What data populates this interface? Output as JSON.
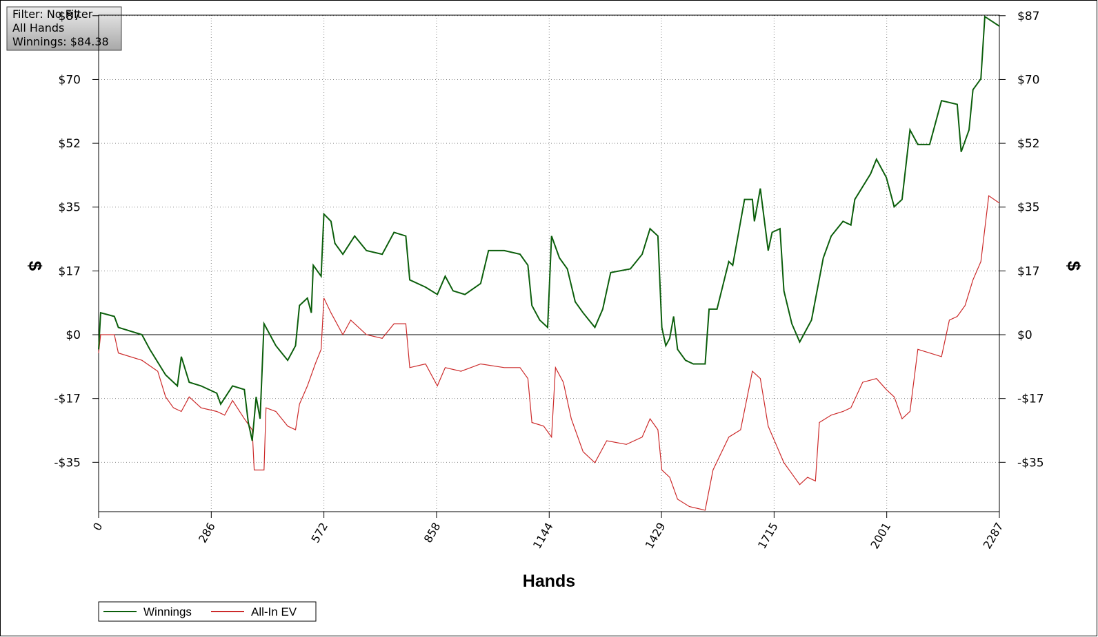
{
  "chart_data": {
    "type": "line",
    "info": [
      "Filter: No Filter",
      "All Hands",
      "Winnings: $84.38"
    ],
    "xlabel": "Hands",
    "ylabel": "$",
    "y2label": "$",
    "xlim": [
      0,
      2287
    ],
    "xticks": [
      0,
      286,
      572,
      858,
      1144,
      1429,
      1715,
      2001,
      2287
    ],
    "ylim": [
      -48.4,
      87.4
    ],
    "yticks": [
      {
        "value": -34.9,
        "label": "-$35"
      },
      {
        "value": -17.45,
        "label": "-$17"
      },
      {
        "value": 0,
        "label": "$0"
      },
      {
        "value": 17.45,
        "label": "$17"
      },
      {
        "value": 34.9,
        "label": "$35"
      },
      {
        "value": 52.35,
        "label": "$52"
      },
      {
        "value": 69.8,
        "label": "$70"
      },
      {
        "value": 87.25,
        "label": "$87"
      }
    ],
    "grid": true,
    "legend": "bottom-left",
    "series": [
      {
        "name": "Winnings",
        "color": "#0b5e0b",
        "x": [
          0,
          5,
          40,
          50,
          110,
          130,
          170,
          200,
          210,
          230,
          260,
          300,
          310,
          340,
          370,
          380,
          390,
          400,
          410,
          420,
          450,
          480,
          500,
          510,
          530,
          540,
          545,
          565,
          572,
          590,
          600,
          620,
          650,
          680,
          720,
          750,
          780,
          790,
          830,
          860,
          880,
          900,
          930,
          970,
          990,
          1030,
          1070,
          1090,
          1100,
          1120,
          1140,
          1150,
          1170,
          1190,
          1210,
          1230,
          1260,
          1280,
          1300,
          1350,
          1380,
          1400,
          1420,
          1430,
          1440,
          1450,
          1460,
          1470,
          1490,
          1510,
          1540,
          1550,
          1570,
          1600,
          1610,
          1640,
          1660,
          1665,
          1680,
          1700,
          1710,
          1730,
          1740,
          1760,
          1780,
          1800,
          1810,
          1840,
          1860,
          1890,
          1910,
          1920,
          1960,
          1975,
          2000,
          2020,
          2040,
          2060,
          2080,
          2110,
          2140,
          2180,
          2190,
          2210,
          2220,
          2240,
          2250,
          2287
        ],
        "values": [
          -4,
          6,
          5,
          2,
          0,
          -4,
          -11,
          -14,
          -6,
          -13,
          -14,
          -16,
          -19,
          -14,
          -15,
          -24,
          -29,
          -17,
          -23,
          3,
          -3,
          -7,
          -3,
          8,
          10,
          6,
          19,
          16,
          33,
          31,
          25,
          22,
          27,
          23,
          22,
          28,
          27,
          15,
          13,
          11,
          16,
          12,
          11,
          14,
          23,
          23,
          22,
          19,
          8,
          4,
          2,
          27,
          21,
          18,
          9,
          6,
          2,
          7,
          17,
          18,
          22,
          29,
          27,
          2,
          -3,
          -1,
          5,
          -4,
          -7,
          -8,
          -8,
          7,
          7,
          20,
          19,
          37,
          37,
          31,
          40,
          23,
          28,
          29,
          12,
          3,
          -2,
          2,
          4,
          21,
          27,
          31,
          30,
          37,
          44,
          48,
          43,
          35,
          37,
          56,
          52,
          52,
          64,
          63,
          50,
          56,
          67,
          70,
          87,
          84.38
        ]
      },
      {
        "name": "All-In EV",
        "color": "#cc2a2a",
        "x": [
          0,
          5,
          40,
          50,
          110,
          150,
          170,
          190,
          210,
          230,
          260,
          300,
          320,
          340,
          370,
          390,
          395,
          420,
          425,
          450,
          480,
          500,
          510,
          530,
          550,
          565,
          572,
          590,
          620,
          640,
          680,
          720,
          750,
          780,
          790,
          830,
          860,
          880,
          920,
          970,
          1030,
          1070,
          1090,
          1100,
          1130,
          1150,
          1160,
          1180,
          1200,
          1230,
          1260,
          1290,
          1340,
          1380,
          1400,
          1420,
          1430,
          1450,
          1470,
          1500,
          1540,
          1560,
          1600,
          1630,
          1660,
          1680,
          1700,
          1720,
          1740,
          1760,
          1780,
          1800,
          1820,
          1830,
          1860,
          1890,
          1910,
          1940,
          1975,
          2000,
          2020,
          2040,
          2060,
          2080,
          2110,
          2140,
          2160,
          2180,
          2200,
          2220,
          2240,
          2260,
          2287
        ],
        "values": [
          -5,
          0,
          0,
          -5,
          -7,
          -10,
          -17,
          -20,
          -21,
          -17,
          -20,
          -21,
          -22,
          -18,
          -23,
          -26,
          -37,
          -37,
          -20,
          -21,
          -25,
          -26,
          -19,
          -14,
          -8,
          -4,
          10,
          6,
          0,
          4,
          0,
          -1,
          3,
          3,
          -9,
          -8,
          -14,
          -9,
          -10,
          -8,
          -9,
          -9,
          -12,
          -24,
          -25,
          -28,
          -9,
          -13,
          -23,
          -32,
          -35,
          -29,
          -30,
          -28,
          -23,
          -26,
          -37,
          -39,
          -45,
          -47,
          -48,
          -37,
          -28,
          -26,
          -10,
          -12,
          -25,
          -30,
          -35,
          -38,
          -41,
          -39,
          -40,
          -24,
          -22,
          -21,
          -20,
          -13,
          -12,
          -15,
          -17,
          -23,
          -21,
          -4,
          -5,
          -6,
          4,
          5,
          8,
          15,
          20,
          38,
          36
        ]
      }
    ]
  }
}
